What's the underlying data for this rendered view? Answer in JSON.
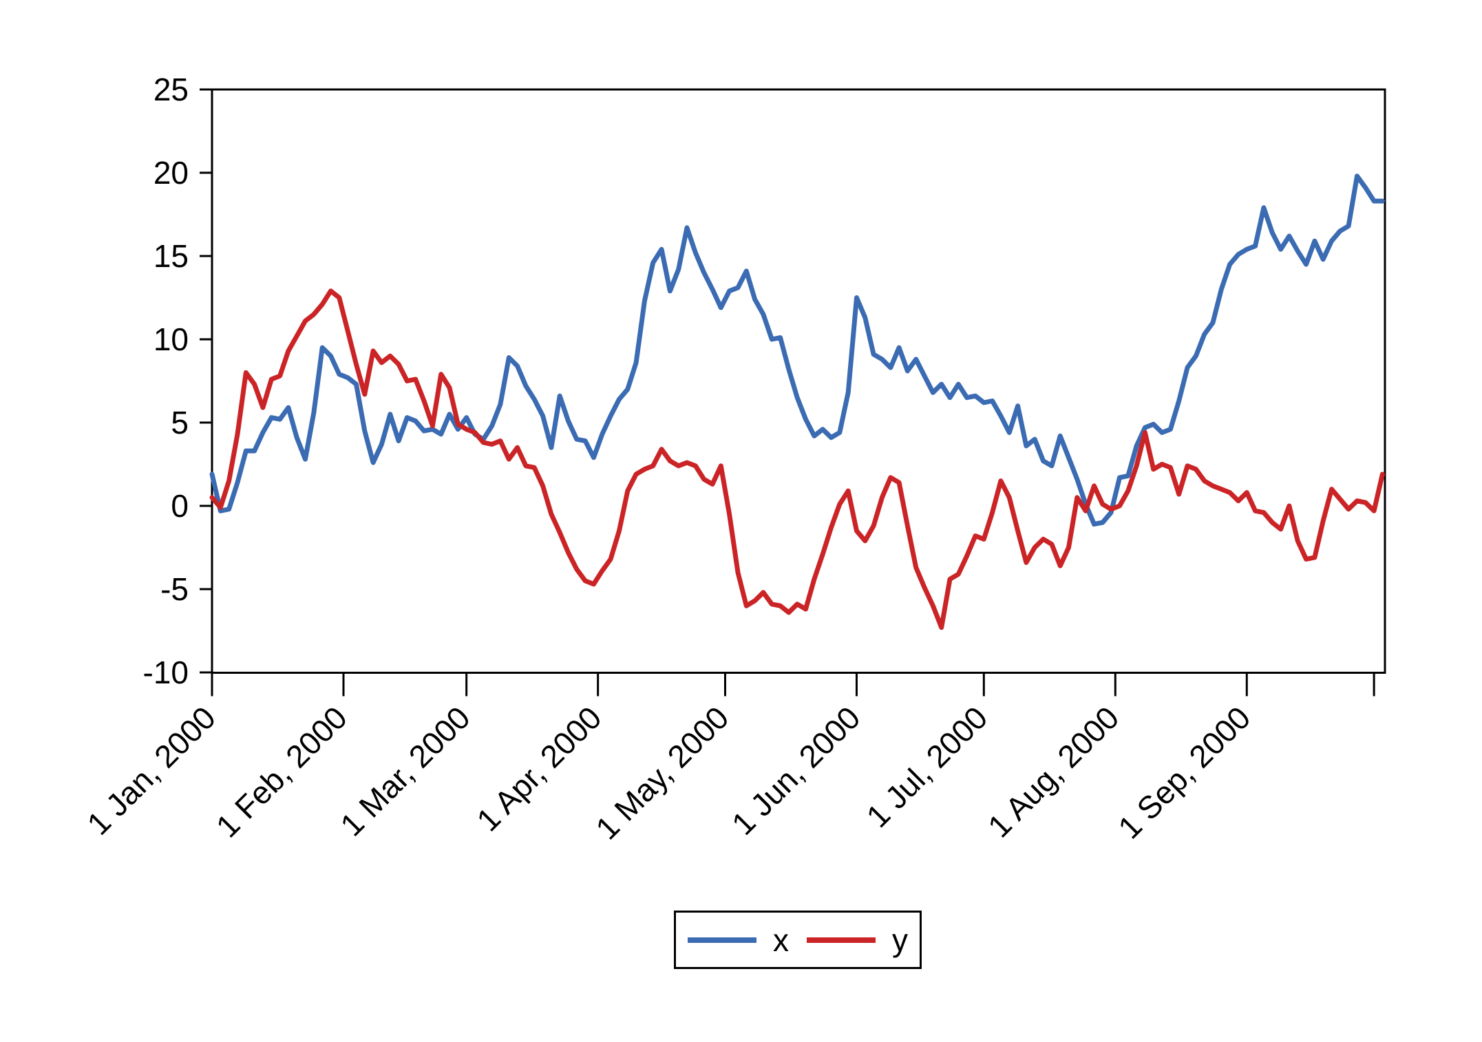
{
  "chart_data": {
    "type": "line",
    "title": "",
    "xlabel": "",
    "ylabel": "",
    "grid": false,
    "legend_position": "bottom-center",
    "y_axis": {
      "ticks": [
        25,
        20,
        15,
        10,
        5,
        0,
        -5,
        -10
      ],
      "range": [
        -10,
        25
      ]
    },
    "x_axis": {
      "unit": "date (daily, year 2000)",
      "tick_days": [
        1,
        32,
        61,
        92,
        122,
        153,
        183,
        214,
        245,
        275
      ],
      "tick_labels": [
        "1 Jan, 2000",
        "1 Feb, 2000",
        "1 Mar, 2000",
        "1 Apr, 2000",
        "1 May, 2000",
        "1 Jun, 2000",
        "1 Jul, 2000",
        "1 Aug, 2000",
        "1 Sep, 2000",
        ""
      ],
      "range_days": [
        1,
        277.6
      ]
    },
    "days": [
      1,
      3,
      5,
      7,
      9,
      11,
      13,
      15,
      17,
      19,
      21,
      23,
      25,
      27,
      29,
      31,
      33,
      35,
      37,
      39,
      41,
      43,
      45,
      47,
      49,
      51,
      53,
      55,
      57,
      59,
      61,
      63,
      65,
      67,
      69,
      71,
      73,
      75,
      77,
      79,
      81,
      83,
      85,
      87,
      89,
      91,
      93,
      95,
      97,
      99,
      101,
      103,
      105,
      107,
      109,
      111,
      113,
      115,
      117,
      119,
      121,
      123,
      125,
      127,
      129,
      131,
      133,
      135,
      137,
      139,
      141,
      143,
      145,
      147,
      149,
      151,
      153,
      155,
      157,
      159,
      161,
      163,
      165,
      167,
      169,
      171,
      173,
      175,
      177,
      179,
      181,
      183,
      185,
      187,
      189,
      191,
      193,
      195,
      197,
      199,
      201,
      203,
      205,
      207,
      209,
      211,
      213,
      215,
      217,
      219,
      221,
      223,
      225,
      227,
      229,
      231,
      233,
      235,
      237,
      239,
      241,
      243,
      245,
      247,
      249,
      251,
      253,
      255,
      257,
      259,
      261,
      263,
      265,
      267,
      269,
      271,
      273,
      275,
      277
    ],
    "series": [
      {
        "name": "x",
        "color": "#3B6BB2",
        "values": [
          1.9,
          -0.3,
          -0.2,
          1.4,
          3.3,
          3.3,
          4.4,
          5.3,
          5.2,
          5.9,
          4.1,
          2.8,
          5.6,
          9.5,
          9.0,
          7.9,
          7.7,
          7.3,
          4.5,
          2.6,
          3.7,
          5.5,
          3.9,
          5.3,
          5.1,
          4.5,
          4.6,
          4.3,
          5.5,
          4.6,
          5.3,
          4.3,
          4.0,
          4.8,
          6.1,
          8.9,
          8.4,
          7.2,
          6.4,
          5.4,
          3.5,
          6.6,
          5.1,
          4.0,
          3.9,
          2.9,
          4.3,
          5.4,
          6.4,
          7.0,
          8.6,
          12.3,
          14.6,
          15.4,
          12.9,
          14.2,
          16.7,
          15.2,
          14.0,
          13.0,
          11.9,
          12.9,
          13.1,
          14.1,
          12.4,
          11.5,
          10.0,
          10.1,
          8.2,
          6.5,
          5.2,
          4.2,
          4.6,
          4.1,
          4.4,
          6.8,
          12.5,
          11.3,
          9.1,
          8.8,
          8.3,
          9.5,
          8.1,
          8.8,
          7.8,
          6.8,
          7.3,
          6.5,
          7.3,
          6.5,
          6.6,
          6.2,
          6.3,
          5.4,
          4.4,
          6.0,
          3.6,
          4.0,
          2.7,
          2.4,
          4.2,
          2.9,
          1.6,
          0.1,
          -1.1,
          -1.0,
          -0.4,
          1.7,
          1.8,
          3.6,
          4.7,
          4.9,
          4.4,
          4.6,
          6.3,
          8.3,
          9.0,
          10.3,
          11.0,
          13.0,
          14.5,
          15.1,
          15.4,
          15.6,
          17.9,
          16.4,
          15.4,
          16.2,
          15.3,
          14.5,
          15.9,
          14.8,
          15.9,
          16.5,
          16.8,
          19.8,
          19.1,
          18.3,
          18.3
        ]
      },
      {
        "name": "y",
        "color": "#CB2427",
        "values": [
          0.5,
          -0.1,
          1.5,
          4.3,
          8.0,
          7.3,
          5.9,
          7.6,
          7.8,
          9.3,
          10.2,
          11.1,
          11.5,
          12.1,
          12.9,
          12.5,
          10.5,
          8.5,
          6.7,
          9.3,
          8.6,
          9.0,
          8.5,
          7.5,
          7.6,
          6.3,
          4.8,
          7.9,
          7.1,
          4.9,
          4.6,
          4.4,
          3.8,
          3.7,
          3.9,
          2.8,
          3.5,
          2.4,
          2.3,
          1.2,
          -0.5,
          -1.6,
          -2.8,
          -3.8,
          -4.5,
          -4.7,
          -3.9,
          -3.2,
          -1.5,
          0.9,
          1.9,
          2.2,
          2.4,
          3.4,
          2.7,
          2.4,
          2.6,
          2.4,
          1.6,
          1.3,
          2.4,
          -0.5,
          -4.0,
          -6.0,
          -5.7,
          -5.2,
          -5.9,
          -6.0,
          -6.4,
          -5.9,
          -6.2,
          -4.4,
          -2.9,
          -1.3,
          0.1,
          0.9,
          -1.5,
          -2.1,
          -1.2,
          0.5,
          1.7,
          1.4,
          -1.2,
          -3.7,
          -4.9,
          -6.0,
          -7.3,
          -4.4,
          -4.1,
          -3.0,
          -1.8,
          -2.0,
          -0.4,
          1.5,
          0.5,
          -1.5,
          -3.4,
          -2.5,
          -2.0,
          -2.3,
          -3.6,
          -2.5,
          0.5,
          -0.3,
          1.2,
          0.1,
          -0.2,
          0.0,
          0.9,
          2.4,
          4.4,
          2.2,
          2.5,
          2.3,
          0.7,
          2.4,
          2.2,
          1.5,
          1.2,
          1.0,
          0.8,
          0.3,
          0.8,
          -0.3,
          -0.4,
          -1.0,
          -1.4,
          0.0,
          -2.1,
          -3.2,
          -3.1,
          -0.9,
          1.0,
          0.4,
          -0.2,
          0.3,
          0.2,
          -0.3,
          1.9
        ]
      }
    ],
    "legend": {
      "items": [
        "x",
        "y"
      ],
      "border": true
    }
  }
}
